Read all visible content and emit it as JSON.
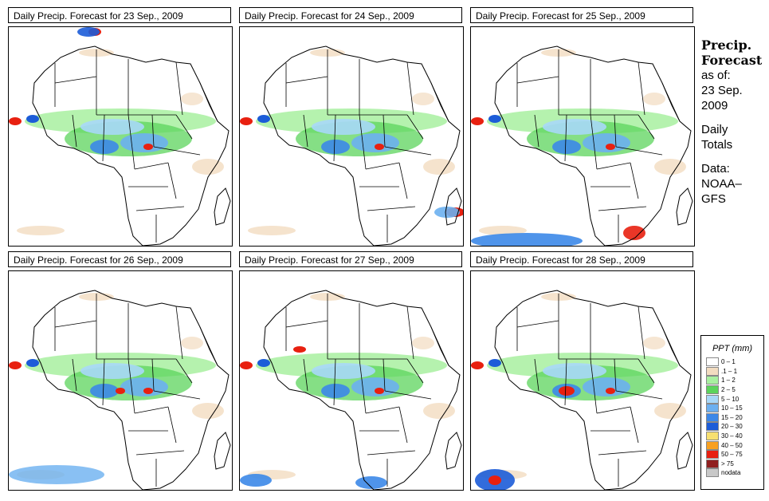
{
  "panels": [
    {
      "title": "Daily Precip. Forecast for  23 Sep., 2009"
    },
    {
      "title": "Daily Precip. Forecast for  24 Sep., 2009"
    },
    {
      "title": "Daily Precip. Forecast for  25 Sep., 2009"
    },
    {
      "title": "Daily Precip. Forecast for  26 Sep., 2009"
    },
    {
      "title": "Daily Precip. Forecast for  27 Sep., 2009"
    },
    {
      "title": "Daily Precip. Forecast for  28 Sep., 2009"
    }
  ],
  "sidebar": {
    "heading1": "Precip.",
    "heading2": "Forecast",
    "line1": "as of:",
    "line2": "23 Sep.",
    "line3": "2009",
    "line4": "Daily",
    "line5": "Totals",
    "line6": "Data:",
    "line7": "NOAA–",
    "line8": "GFS"
  },
  "legend": {
    "title": "PPT (mm)",
    "items": [
      {
        "label": "0 – 1",
        "color": "#ffffff"
      },
      {
        "label": ".1 – 1",
        "color": "#f2dcc0"
      },
      {
        "label": "1 – 2",
        "color": "#a8f0a0"
      },
      {
        "label": "2 – 5",
        "color": "#5cd45c"
      },
      {
        "label": "5 – 10",
        "color": "#a8d8f8"
      },
      {
        "label": "10 – 15",
        "color": "#6cb0f0"
      },
      {
        "label": "15 – 20",
        "color": "#3c88e8"
      },
      {
        "label": "20 – 30",
        "color": "#1c5cd8"
      },
      {
        "label": "30 – 40",
        "color": "#f8e070"
      },
      {
        "label": "40 – 50",
        "color": "#f8a020"
      },
      {
        "label": "50 – 75",
        "color": "#e82010"
      },
      {
        "label": "> 75",
        "color": "#902020"
      },
      {
        "label": "nodata",
        "color": "#c8c8c8"
      }
    ]
  }
}
